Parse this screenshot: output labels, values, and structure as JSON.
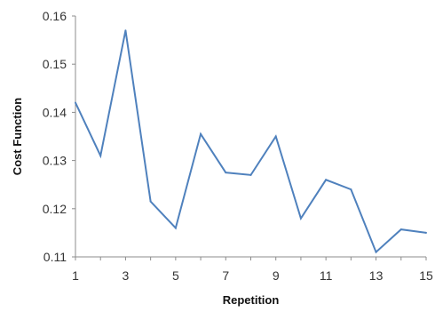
{
  "chart_data": {
    "type": "line",
    "title": "",
    "xlabel": "Repetition",
    "ylabel": "Cost Function",
    "x": [
      1,
      2,
      3,
      4,
      5,
      6,
      7,
      8,
      9,
      10,
      11,
      12,
      13,
      14,
      15
    ],
    "x_tick_labels": [
      "1",
      "3",
      "5",
      "7",
      "9",
      "11",
      "13",
      "15"
    ],
    "x_tick_values": [
      1,
      3,
      5,
      7,
      9,
      11,
      13,
      15
    ],
    "xlim": [
      1,
      15
    ],
    "ylim": [
      0.11,
      0.16
    ],
    "y_tick_values": [
      0.11,
      0.12,
      0.13,
      0.14,
      0.15,
      0.16
    ],
    "y_tick_labels": [
      "0.11",
      "0.12",
      "0.13",
      "0.14",
      "0.15",
      "0.16"
    ],
    "grid": false,
    "legend": "none",
    "line_color": "#4f81bd",
    "series": [
      {
        "values": [
          0.142,
          0.131,
          0.157,
          0.1215,
          0.116,
          0.1355,
          0.1275,
          0.127,
          0.135,
          0.118,
          0.126,
          0.124,
          0.111,
          0.1157,
          0.115
        ]
      }
    ]
  }
}
